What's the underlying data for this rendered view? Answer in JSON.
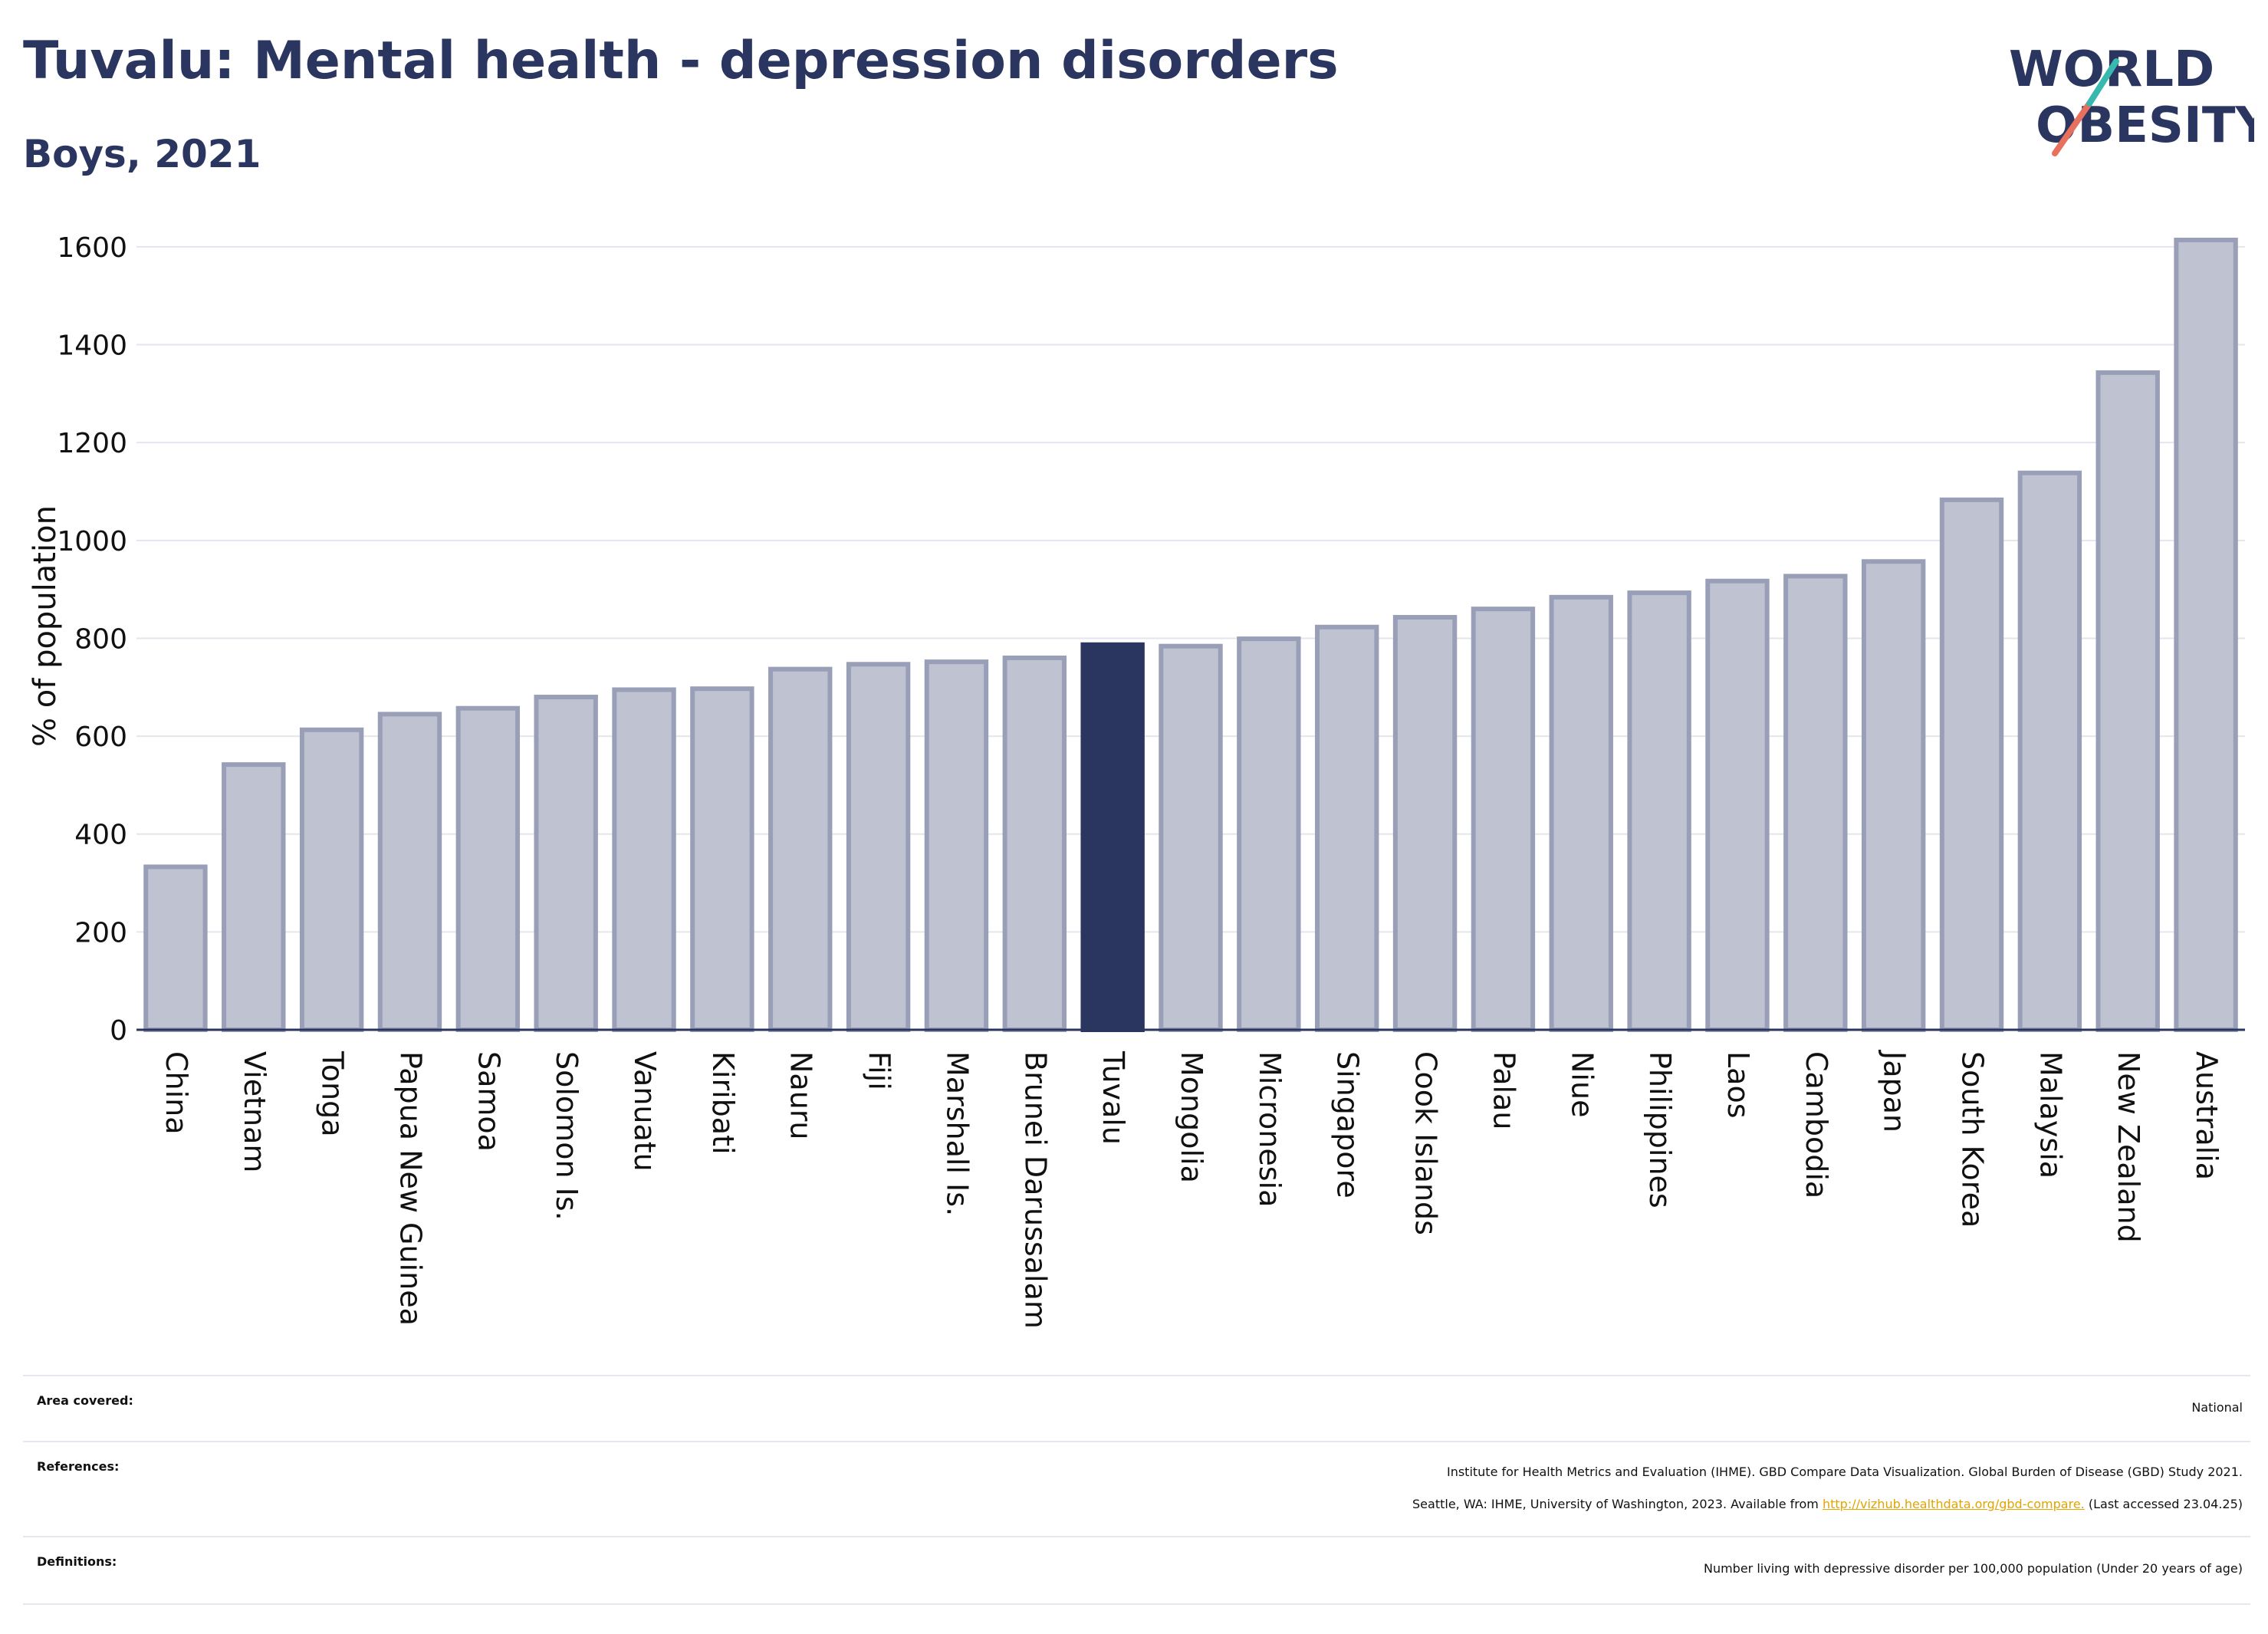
{
  "title": "Tuvalu: Mental health - depression disorders",
  "subtitle": "Boys, 2021",
  "logo": {
    "line1": "WORLD",
    "line2": "OBESITY"
  },
  "colors": {
    "highlight": "#2a3560",
    "bar": "#bfc2d0",
    "bar_stroke": "#9a9fb8",
    "grid": "#e4e6ee",
    "axis": "#2a3560"
  },
  "chart_data": {
    "type": "bar",
    "ylabel": "% of population",
    "ylim": [
      0,
      1650
    ],
    "yticks": [
      0,
      200,
      400,
      600,
      800,
      1000,
      1200,
      1400,
      1600
    ],
    "grid": true,
    "highlight": "Tuvalu",
    "categories": [
      "China",
      "Vietnam",
      "Tonga",
      "Papua New Guinea",
      "Samoa",
      "Solomon Is.",
      "Vanuatu",
      "Kiribati",
      "Nauru",
      "Fiji",
      "Marshall Is.",
      "Brunei Darussalam",
      "Tuvalu",
      "Mongolia",
      "Micronesia",
      "Singapore",
      "Cook Islands",
      "Palau",
      "Niue",
      "Philippines",
      "Laos",
      "Cambodia",
      "Japan",
      "South Korea",
      "Malaysia",
      "New Zealand",
      "Australia"
    ],
    "values": [
      333,
      542,
      613,
      645,
      657,
      680,
      695,
      697,
      737,
      747,
      752,
      760,
      787,
      784,
      799,
      823,
      843,
      860,
      884,
      893,
      917,
      927,
      957,
      1083,
      1138,
      1343,
      1614
    ]
  },
  "info": {
    "area_label": "Area covered:",
    "area_value": "National",
    "references_label": "References:",
    "references_line1": "Institute for Health Metrics and Evaluation (IHME). GBD Compare Data Visualization. Global Burden of Disease (GBD) Study 2021.",
    "references_line2_prefix": "Seattle, WA: IHME, University of Washington, 2023. Available from ",
    "references_link": "http://vizhub.healthdata.org/gbd-compare.",
    "references_line2_suffix": " (Last accessed 23.04.25)",
    "definitions_label": "Definitions:",
    "definitions_value": "Number living with depressive disorder per 100,000 population (Under 20 years of age)"
  }
}
